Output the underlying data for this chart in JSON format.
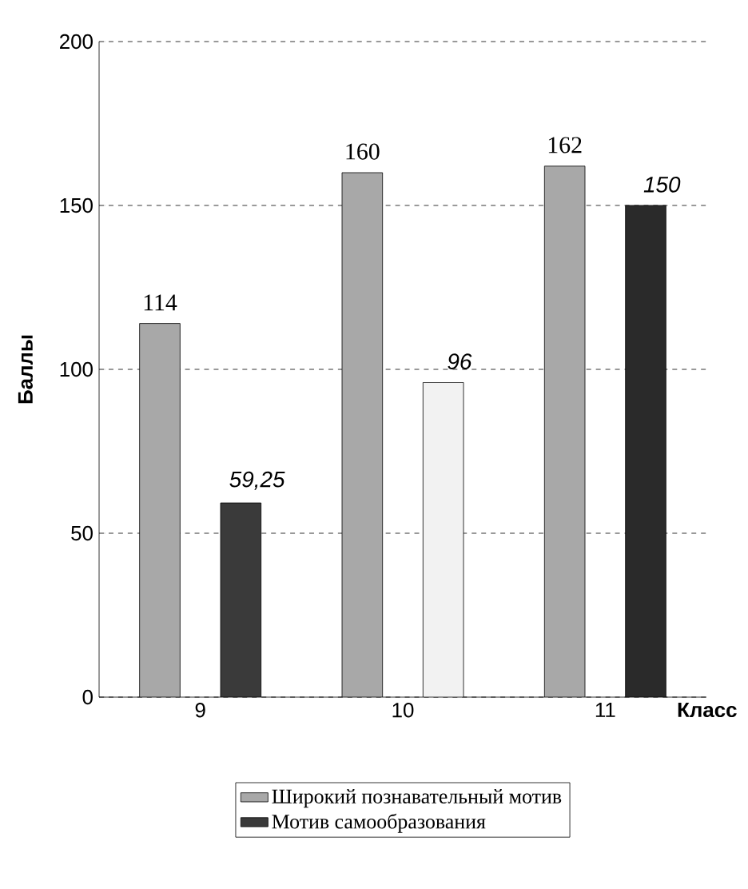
{
  "chart_data": {
    "type": "bar",
    "xlabel": "Класс",
    "ylabel": "Баллы",
    "categories": [
      "9",
      "10",
      "11"
    ],
    "series": [
      {
        "name": "Широкий познавательный мотив",
        "color": "#a8a8a8",
        "values": [
          114,
          160,
          162
        ],
        "value_labels": [
          "114",
          "160",
          "162"
        ]
      },
      {
        "name": "Мотив самообразования",
        "color": "#3a3a3a",
        "colors": [
          "#3a3a3a",
          "#f2f2f2",
          "#2a2a2a"
        ],
        "values": [
          59.25,
          96,
          150
        ],
        "value_labels": [
          "59,25",
          "96",
          "150"
        ]
      }
    ],
    "ylim": [
      0,
      200
    ],
    "yticks": [
      0,
      50,
      100,
      150,
      200
    ],
    "grid": "y",
    "legend": "bottom"
  }
}
